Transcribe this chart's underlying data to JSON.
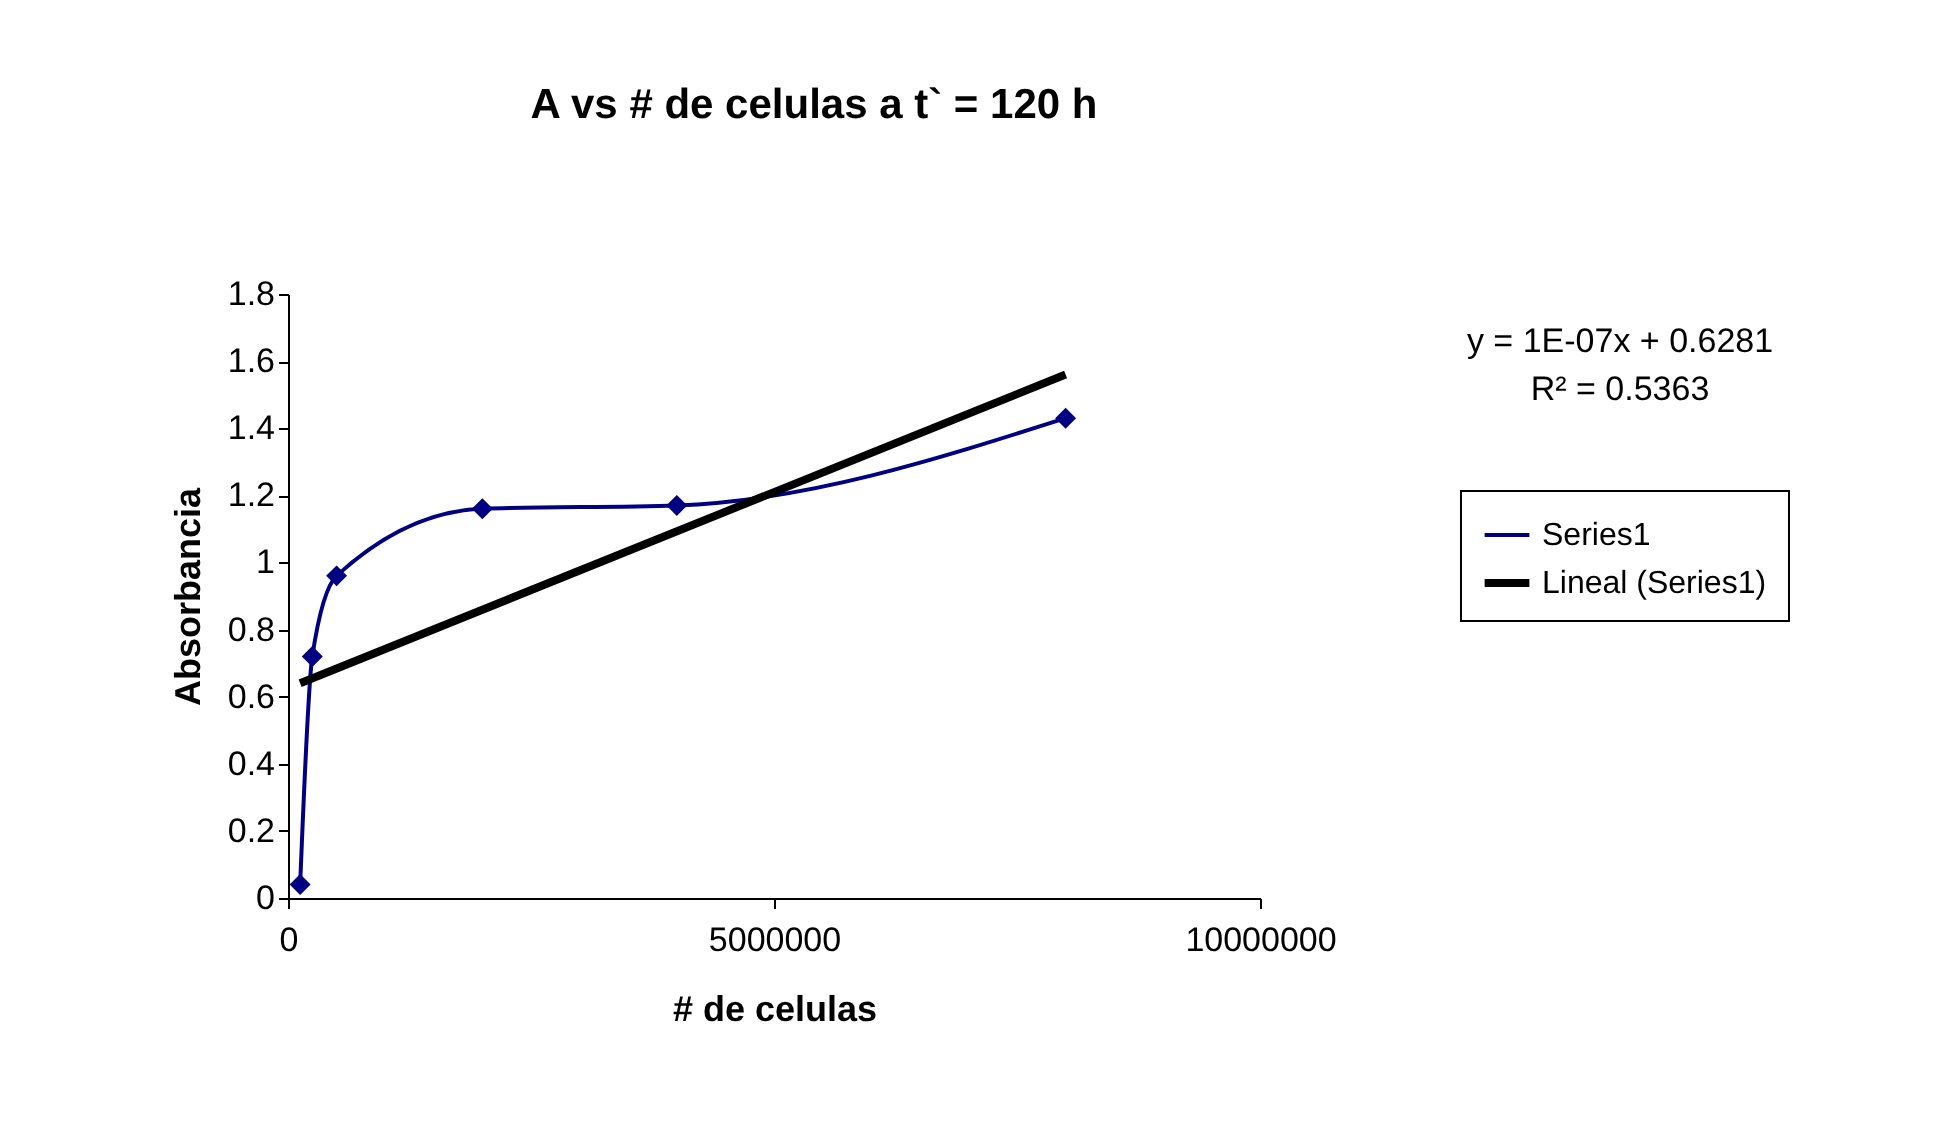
{
  "chart_data": {
    "type": "line",
    "title": "A vs # de celulas a t` = 120 h",
    "xlabel": "# de celulas",
    "ylabel": "Absorbancia",
    "x": [
      125000,
      250000,
      500000,
      2000000,
      4000000,
      8000000
    ],
    "series": [
      {
        "name": "Series1",
        "color": "#000080",
        "values": [
          0.04,
          0.72,
          0.96,
          1.16,
          1.17,
          1.43
        ],
        "marker": "diamond"
      },
      {
        "name": "Lineal (Series1)",
        "color": "#000000",
        "type": "line",
        "x": [
          125000,
          8000000
        ],
        "values": [
          0.64,
          1.56
        ],
        "marker": "none"
      }
    ],
    "xlim": [
      0,
      10000000
    ],
    "xticks": [
      0,
      5000000,
      10000000
    ],
    "ylim": [
      0,
      1.8
    ],
    "yticks": [
      0,
      0.2,
      0.4,
      0.6,
      0.8,
      1,
      1.2,
      1.4,
      1.6,
      1.8
    ],
    "annotations": [
      "y = 1E-07x + 0.6281",
      "R² = 0.5363"
    ],
    "legend": "right",
    "grid": false
  }
}
